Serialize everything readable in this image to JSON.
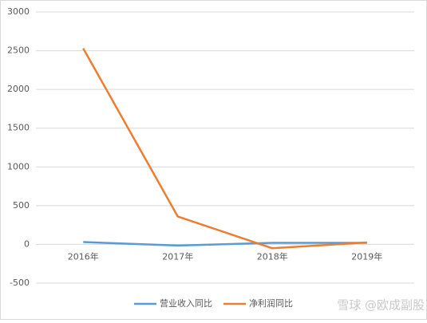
{
  "chart_data": {
    "type": "line",
    "categories": [
      "2016年",
      "2017年",
      "2018年",
      "2019年"
    ],
    "series": [
      {
        "name": "营业收入同比",
        "color": "#5b9bd5",
        "values": [
          30,
          -15,
          20,
          20
        ]
      },
      {
        "name": "净利润同比",
        "color": "#ed7d31",
        "values": [
          2530,
          360,
          -50,
          25
        ]
      }
    ],
    "ylim": [
      -500,
      3000
    ],
    "yticks": [
      -500,
      0,
      500,
      1000,
      1500,
      2000,
      2500,
      3000
    ],
    "grid": true,
    "legend": "bottom-right",
    "watermark": "雪球 @欧成副股"
  }
}
